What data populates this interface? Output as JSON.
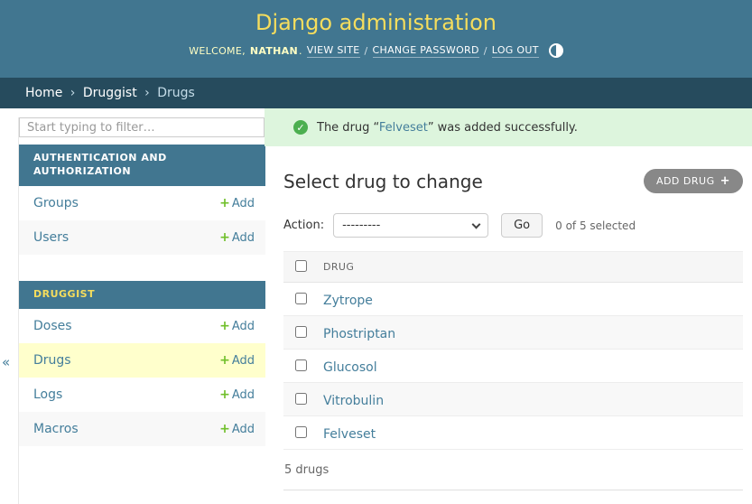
{
  "header": {
    "title": "Django administration",
    "welcome_prefix": "WELCOME,",
    "username": "NATHAN",
    "welcome_period": ".",
    "link_view_site": "VIEW SITE",
    "link_change_password": "CHANGE PASSWORD",
    "link_log_out": "LOG OUT",
    "separator": "/"
  },
  "breadcrumb": {
    "home": "Home",
    "app": "Druggist",
    "current": "Drugs",
    "separator": "›"
  },
  "sidebar": {
    "collapse_icon": "«",
    "filter_placeholder": "Start typing to filter…",
    "add_label": "Add",
    "plus_glyph": "+",
    "sections": [
      {
        "title": "AUTHENTICATION AND AUTHORIZATION",
        "items": [
          {
            "label": "Groups"
          },
          {
            "label": "Users"
          }
        ]
      },
      {
        "title": "DRUGGIST",
        "items": [
          {
            "label": "Doses"
          },
          {
            "label": "Drugs"
          },
          {
            "label": "Logs"
          },
          {
            "label": "Macros"
          }
        ]
      }
    ]
  },
  "main": {
    "message": {
      "prefix": "The drug “",
      "link_text": "Felveset",
      "suffix": "” was added successfully.",
      "check_glyph": "✓"
    },
    "heading": "Select drug to change",
    "add_button_label": "ADD DRUG",
    "add_button_plus": "+",
    "actions": {
      "label": "Action:",
      "select_value": "---------",
      "go_label": "Go",
      "counter": "0 of 5 selected"
    },
    "table": {
      "column_header": "DRUG",
      "rows": [
        "Zytrope",
        "Phostriptan",
        "Glucosol",
        "Vitrobulin",
        "Felveset"
      ]
    },
    "footer_count": "5 drugs"
  },
  "colors": {
    "header_bg": "#417690",
    "breadcrumb_bg": "#264b5d",
    "accent_yellow": "#f5dd5d",
    "link_blue": "#447e9b",
    "success_bg": "#ddf5dd",
    "success_green": "#4caf50",
    "add_green": "#70bf2b",
    "selected_row_bg": "#ffffcc",
    "button_gray": "#888888"
  }
}
